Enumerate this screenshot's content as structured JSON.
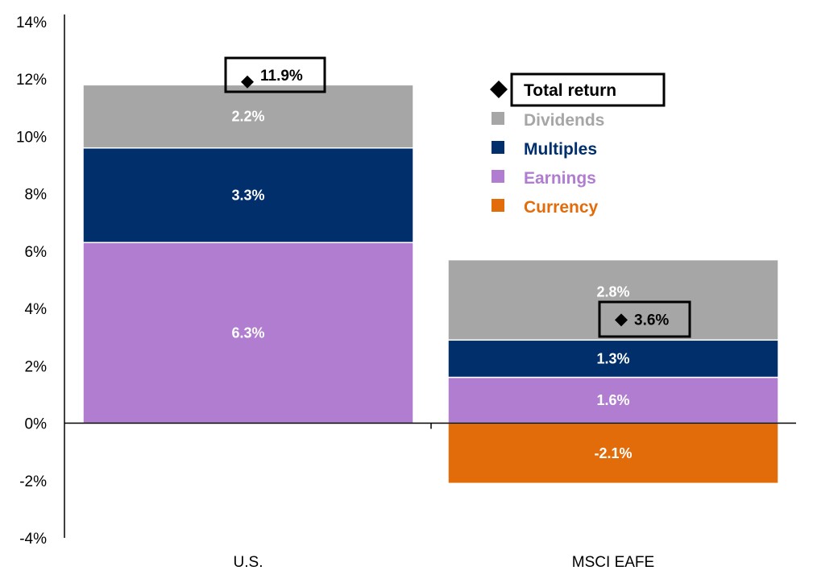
{
  "chart_data": {
    "type": "bar",
    "stacked": true,
    "categories": [
      "U.S.",
      "MSCI EAFE"
    ],
    "series": [
      {
        "name": "Earnings",
        "color": "#b07dd0",
        "values": [
          6.3,
          1.6
        ],
        "labels": [
          "6.3%",
          "1.6%"
        ]
      },
      {
        "name": "Multiples",
        "color": "#002f6c",
        "values": [
          3.3,
          1.3
        ],
        "labels": [
          "3.3%",
          "1.3%"
        ]
      },
      {
        "name": "Dividends",
        "color": "#a6a6a6",
        "values": [
          2.2,
          2.8
        ],
        "labels": [
          "2.2%",
          "2.8%"
        ]
      },
      {
        "name": "Currency",
        "color": "#e36c0a",
        "values": [
          0,
          -2.1
        ],
        "labels": [
          "",
          "-2.1%"
        ]
      }
    ],
    "total_return": {
      "name": "Total return",
      "values": [
        11.9,
        3.6
      ],
      "labels": [
        "11.9%",
        "3.6%"
      ]
    },
    "legend": [
      "Total return",
      "Dividends",
      "Multiples",
      "Earnings",
      "Currency"
    ],
    "ylim": [
      -4,
      14
    ],
    "yticks": [
      "-4%",
      "-2%",
      "0%",
      "2%",
      "4%",
      "6%",
      "8%",
      "10%",
      "12%",
      "14%"
    ],
    "ytick_values": [
      -4,
      -2,
      0,
      2,
      4,
      6,
      8,
      10,
      12,
      14
    ],
    "grid": false,
    "legend_placement": "top-right"
  }
}
